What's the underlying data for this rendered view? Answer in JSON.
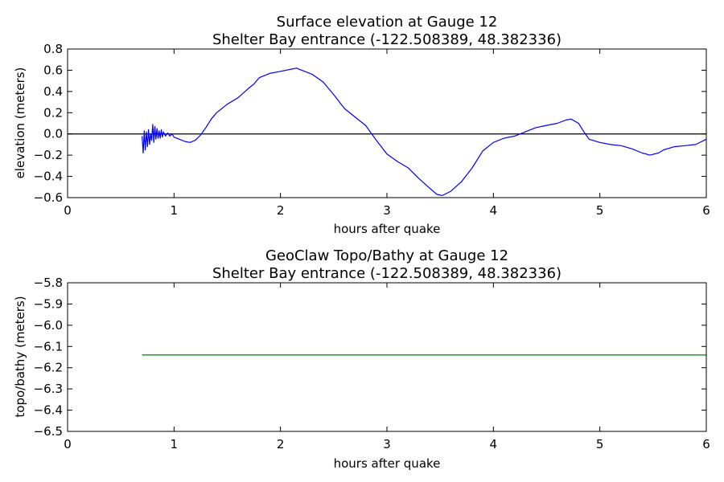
{
  "chart_data": [
    {
      "type": "line",
      "title": "Surface elevation at Gauge 12",
      "subtitle": "Shelter Bay entrance  (-122.508389, 48.382336)",
      "xlabel": "hours after quake",
      "ylabel": "elevation (meters)",
      "xlim": [
        0,
        6
      ],
      "ylim": [
        -0.6,
        0.8
      ],
      "xticks": [
        "0",
        "1",
        "2",
        "3",
        "4",
        "5",
        "6"
      ],
      "yticks": [
        "−0.6",
        "−0.4",
        "−0.2",
        "0.0",
        "0.2",
        "0.4",
        "0.6",
        "0.8"
      ],
      "grid": false,
      "reference_line": 0,
      "series": [
        {
          "color": "#0000ff",
          "x": [
            0.7,
            0.71,
            0.72,
            0.73,
            0.74,
            0.75,
            0.76,
            0.77,
            0.78,
            0.79,
            0.8,
            0.81,
            0.82,
            0.83,
            0.84,
            0.85,
            0.86,
            0.87,
            0.88,
            0.89,
            0.9,
            0.92,
            0.94,
            0.96,
            0.98,
            1.0,
            1.05,
            1.1,
            1.15,
            1.2,
            1.25,
            1.3,
            1.35,
            1.4,
            1.5,
            1.6,
            1.7,
            1.75,
            1.8,
            1.9,
            2.0,
            2.1,
            2.15,
            2.2,
            2.3,
            2.4,
            2.5,
            2.6,
            2.7,
            2.8,
            2.9,
            3.0,
            3.1,
            3.2,
            3.3,
            3.4,
            3.47,
            3.52,
            3.6,
            3.7,
            3.8,
            3.9,
            4.0,
            4.1,
            4.2,
            4.3,
            4.4,
            4.5,
            4.6,
            4.68,
            4.73,
            4.8,
            4.85,
            4.9,
            5.0,
            5.1,
            5.2,
            5.3,
            5.4,
            5.47,
            5.55,
            5.6,
            5.7,
            5.8,
            5.9,
            6.0
          ],
          "y": [
            -0.02,
            -0.18,
            0.03,
            -0.15,
            0.02,
            -0.12,
            0.04,
            -0.1,
            0.0,
            -0.06,
            0.09,
            -0.08,
            0.07,
            -0.05,
            0.05,
            -0.04,
            0.03,
            -0.04,
            0.04,
            -0.03,
            0.02,
            -0.02,
            0.01,
            -0.02,
            0.0,
            -0.03,
            -0.05,
            -0.07,
            -0.08,
            -0.06,
            -0.01,
            0.06,
            0.14,
            0.2,
            0.28,
            0.34,
            0.43,
            0.47,
            0.53,
            0.57,
            0.59,
            0.61,
            0.62,
            0.6,
            0.56,
            0.49,
            0.37,
            0.24,
            0.16,
            0.08,
            -0.06,
            -0.19,
            -0.26,
            -0.32,
            -0.42,
            -0.51,
            -0.57,
            -0.58,
            -0.54,
            -0.45,
            -0.32,
            -0.16,
            -0.08,
            -0.04,
            -0.02,
            0.02,
            0.06,
            0.08,
            0.1,
            0.13,
            0.14,
            0.1,
            0.02,
            -0.05,
            -0.08,
            -0.1,
            -0.11,
            -0.14,
            -0.18,
            -0.2,
            -0.18,
            -0.15,
            -0.12,
            -0.11,
            -0.1,
            -0.05
          ]
        }
      ]
    },
    {
      "type": "line",
      "title": "GeoClaw Topo/Bathy at Gauge 12",
      "subtitle": "Shelter Bay entrance  (-122.508389, 48.382336)",
      "xlabel": "hours after quake",
      "ylabel": "topo/bathy (meters)",
      "xlim": [
        0,
        6
      ],
      "ylim": [
        -6.5,
        -5.8
      ],
      "xticks": [
        "0",
        "1",
        "2",
        "3",
        "4",
        "5",
        "6"
      ],
      "yticks": [
        "−6.5",
        "−6.4",
        "−6.3",
        "−6.2",
        "−6.1",
        "−6.0",
        "−5.9",
        "−5.8"
      ],
      "grid": false,
      "series": [
        {
          "color": "#008000",
          "x": [
            0.7,
            6.0
          ],
          "y": [
            -6.14,
            -6.14
          ]
        }
      ]
    }
  ]
}
